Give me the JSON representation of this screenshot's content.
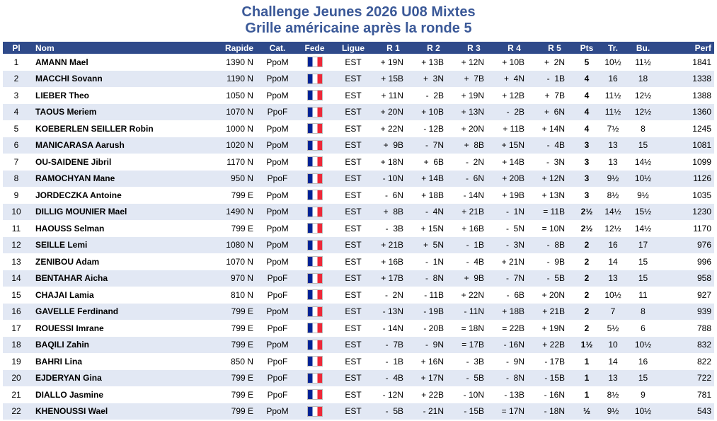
{
  "title": {
    "line1": "Challenge Jeunes 2026 U08 Mixtes",
    "line2": "Grille américaine après la ronde 5"
  },
  "columns": {
    "pl": "Pl",
    "nom": "Nom",
    "rapide": "Rapide",
    "cat": "Cat.",
    "fede": "Fede",
    "ligue": "Ligue",
    "r1": "R 1",
    "r2": "R 2",
    "r3": "R 3",
    "r4": "R 4",
    "r5": "R 5",
    "pts": "Pts",
    "tr": "Tr.",
    "bu": "Bu.",
    "perf": "Perf"
  },
  "colors": {
    "title": "#3b5998",
    "header_bg": "#2f4a8a",
    "row_alt": "#e2e8f4"
  },
  "flag_icon": "france-flag-icon",
  "rows": [
    {
      "pl": "1",
      "nom": "AMANN Mael",
      "rapide": "1390 N",
      "cat": "PpoM",
      "ligue": "EST",
      "r1": "+ 19N",
      "r2": "+ 13B",
      "r3": "+ 12N",
      "r4": "+ 10B",
      "r5": "+  2N",
      "pts": "5",
      "tr": "10½",
      "bu": "11½",
      "perf": "1841"
    },
    {
      "pl": "2",
      "nom": "MACCHI Sovann",
      "rapide": "1190 N",
      "cat": "PpoM",
      "ligue": "EST",
      "r1": "+ 15B",
      "r2": "+  3N",
      "r3": "+  7B",
      "r4": "+  4N",
      "r5": "-  1B",
      "pts": "4",
      "tr": "16",
      "bu": "18",
      "perf": "1338"
    },
    {
      "pl": "3",
      "nom": "LIEBER Theo",
      "rapide": "1050 N",
      "cat": "PpoM",
      "ligue": "EST",
      "r1": "+ 11N",
      "r2": "-  2B",
      "r3": "+ 19N",
      "r4": "+ 12B",
      "r5": "+  7B",
      "pts": "4",
      "tr": "11½",
      "bu": "12½",
      "perf": "1388"
    },
    {
      "pl": "4",
      "nom": "TAOUS Meriem",
      "rapide": "1070 N",
      "cat": "PpoF",
      "ligue": "EST",
      "r1": "+ 20N",
      "r2": "+ 10B",
      "r3": "+ 13N",
      "r4": "-  2B",
      "r5": "+  6N",
      "pts": "4",
      "tr": "11½",
      "bu": "12½",
      "perf": "1360"
    },
    {
      "pl": "5",
      "nom": "KOEBERLEN SEILLER Robin",
      "rapide": "1000 N",
      "cat": "PpoM",
      "ligue": "EST",
      "r1": "+ 22N",
      "r2": "- 12B",
      "r3": "+ 20N",
      "r4": "+ 11B",
      "r5": "+ 14N",
      "pts": "4",
      "tr": "7½",
      "bu": "8",
      "perf": "1245"
    },
    {
      "pl": "6",
      "nom": "MANICARASA Aarush",
      "rapide": "1020 N",
      "cat": "PpoM",
      "ligue": "EST",
      "r1": "+  9B",
      "r2": "-  7N",
      "r3": "+  8B",
      "r4": "+ 15N",
      "r5": "-  4B",
      "pts": "3",
      "tr": "13",
      "bu": "15",
      "perf": "1081"
    },
    {
      "pl": "7",
      "nom": "OU-SAIDENE Jibril",
      "rapide": "1170 N",
      "cat": "PpoM",
      "ligue": "EST",
      "r1": "+ 18N",
      "r2": "+  6B",
      "r3": "-  2N",
      "r4": "+ 14B",
      "r5": "-  3N",
      "pts": "3",
      "tr": "13",
      "bu": "14½",
      "perf": "1099"
    },
    {
      "pl": "8",
      "nom": "RAMOCHYAN Mane",
      "rapide": "950 N",
      "cat": "PpoF",
      "ligue": "EST",
      "r1": "- 10N",
      "r2": "+ 14B",
      "r3": "-  6N",
      "r4": "+ 20B",
      "r5": "+ 12N",
      "pts": "3",
      "tr": "9½",
      "bu": "10½",
      "perf": "1126"
    },
    {
      "pl": "9",
      "nom": "JORDECZKA Antoine",
      "rapide": "799 E",
      "cat": "PpoM",
      "ligue": "EST",
      "r1": "-  6N",
      "r2": "+ 18B",
      "r3": "- 14N",
      "r4": "+ 19B",
      "r5": "+ 13N",
      "pts": "3",
      "tr": "8½",
      "bu": "9½",
      "perf": "1035"
    },
    {
      "pl": "10",
      "nom": "DILLIG MOUNIER Mael",
      "rapide": "1490 N",
      "cat": "PpoM",
      "ligue": "EST",
      "r1": "+  8B",
      "r2": "-  4N",
      "r3": "+ 21B",
      "r4": "-  1N",
      "r5": "= 11B",
      "pts": "2½",
      "tr": "14½",
      "bu": "15½",
      "perf": "1230"
    },
    {
      "pl": "11",
      "nom": "HAOUSS Selman",
      "rapide": "799 E",
      "cat": "PpoM",
      "ligue": "EST",
      "r1": "-  3B",
      "r2": "+ 15N",
      "r3": "+ 16B",
      "r4": "-  5N",
      "r5": "= 10N",
      "pts": "2½",
      "tr": "12½",
      "bu": "14½",
      "perf": "1170"
    },
    {
      "pl": "12",
      "nom": "SEILLE Lemi",
      "rapide": "1080 N",
      "cat": "PpoM",
      "ligue": "EST",
      "r1": "+ 21B",
      "r2": "+  5N",
      "r3": "-  1B",
      "r4": "-  3N",
      "r5": "-  8B",
      "pts": "2",
      "tr": "16",
      "bu": "17",
      "perf": "976"
    },
    {
      "pl": "13",
      "nom": "ZENIBOU Adam",
      "rapide": "1070 N",
      "cat": "PpoM",
      "ligue": "EST",
      "r1": "+ 16B",
      "r2": "-  1N",
      "r3": "-  4B",
      "r4": "+ 21N",
      "r5": "-  9B",
      "pts": "2",
      "tr": "14",
      "bu": "15",
      "perf": "996"
    },
    {
      "pl": "14",
      "nom": "BENTAHAR Aicha",
      "rapide": "970 N",
      "cat": "PpoF",
      "ligue": "EST",
      "r1": "+ 17B",
      "r2": "-  8N",
      "r3": "+  9B",
      "r4": "-  7N",
      "r5": "-  5B",
      "pts": "2",
      "tr": "13",
      "bu": "15",
      "perf": "958"
    },
    {
      "pl": "15",
      "nom": "CHAJAI Lamia",
      "rapide": "810 N",
      "cat": "PpoF",
      "ligue": "EST",
      "r1": "-  2N",
      "r2": "- 11B",
      "r3": "+ 22N",
      "r4": "-  6B",
      "r5": "+ 20N",
      "pts": "2",
      "tr": "10½",
      "bu": "11",
      "perf": "927"
    },
    {
      "pl": "16",
      "nom": "GAVELLE Ferdinand",
      "rapide": "799 E",
      "cat": "PpoM",
      "ligue": "EST",
      "r1": "- 13N",
      "r2": "- 19B",
      "r3": "- 11N",
      "r4": "+ 18B",
      "r5": "+ 21B",
      "pts": "2",
      "tr": "7",
      "bu": "8",
      "perf": "939"
    },
    {
      "pl": "17",
      "nom": "ROUESSI Imrane",
      "rapide": "799 E",
      "cat": "PpoF",
      "ligue": "EST",
      "r1": "- 14N",
      "r2": "- 20B",
      "r3": "= 18N",
      "r4": "= 22B",
      "r5": "+ 19N",
      "pts": "2",
      "tr": "5½",
      "bu": "6",
      "perf": "788"
    },
    {
      "pl": "18",
      "nom": "BAQILI Zahin",
      "rapide": "799 E",
      "cat": "PpoM",
      "ligue": "EST",
      "r1": "-  7B",
      "r2": "-  9N",
      "r3": "= 17B",
      "r4": "- 16N",
      "r5": "+ 22B",
      "pts": "1½",
      "tr": "10",
      "bu": "10½",
      "perf": "832"
    },
    {
      "pl": "19",
      "nom": "BAHRI Lina",
      "rapide": "850 N",
      "cat": "PpoF",
      "ligue": "EST",
      "r1": "-  1B",
      "r2": "+ 16N",
      "r3": "-  3B",
      "r4": "-  9N",
      "r5": "- 17B",
      "pts": "1",
      "tr": "14",
      "bu": "16",
      "perf": "822"
    },
    {
      "pl": "20",
      "nom": "EJDERYAN Gina",
      "rapide": "799 E",
      "cat": "PpoF",
      "ligue": "EST",
      "r1": "-  4B",
      "r2": "+ 17N",
      "r3": "-  5B",
      "r4": "-  8N",
      "r5": "- 15B",
      "pts": "1",
      "tr": "13",
      "bu": "15",
      "perf": "722"
    },
    {
      "pl": "21",
      "nom": "DIALLO Jasmine",
      "rapide": "799 E",
      "cat": "PpoF",
      "ligue": "EST",
      "r1": "- 12N",
      "r2": "+ 22B",
      "r3": "- 10N",
      "r4": "- 13B",
      "r5": "- 16N",
      "pts": "1",
      "tr": "8½",
      "bu": "9",
      "perf": "781"
    },
    {
      "pl": "22",
      "nom": "KHENOUSSI Wael",
      "rapide": "799 E",
      "cat": "PpoM",
      "ligue": "EST",
      "r1": "-  5B",
      "r2": "- 21N",
      "r3": "- 15B",
      "r4": "= 17N",
      "r5": "- 18N",
      "pts": "½",
      "tr": "9½",
      "bu": "10½",
      "perf": "543"
    }
  ]
}
